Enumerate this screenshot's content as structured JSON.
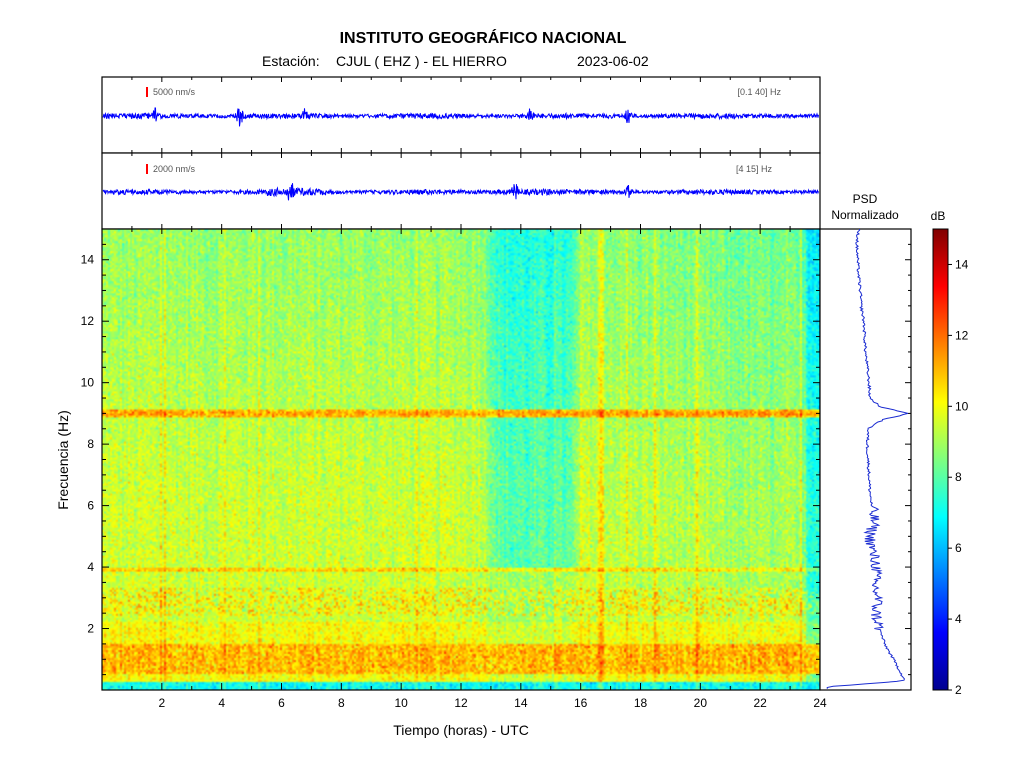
{
  "header": {
    "title": "INSTITUTO GEOGRÁFICO NACIONAL",
    "station_label": "Estación:",
    "station_value": "CJUL ( EHZ ) - EL HIERRO",
    "date": "2023-06-02"
  },
  "traces": [
    {
      "scale_label": "5000 nm/s",
      "band_label": "[0.1 40] Hz",
      "color": "#0000ff",
      "marker_color": "#ff0000",
      "events_hours": [
        1.8,
        4.6,
        6.8,
        14.3,
        17.6
      ]
    },
    {
      "scale_label": "2000 nm/s",
      "band_label": "[4 15] Hz",
      "color": "#0000ff",
      "marker_color": "#ff0000",
      "events_hours": [
        6.3,
        13.8,
        17.6
      ]
    }
  ],
  "psd": {
    "title_line1": "PSD",
    "title_line2": "Normalizado",
    "line_color": "#1a2bd1"
  },
  "colorbar": {
    "unit": "dB",
    "min": 2,
    "max": 15,
    "ticks": [
      2,
      4,
      6,
      8,
      10,
      12,
      14
    ]
  },
  "chart_data": {
    "type": "heatmap",
    "title": "INSTITUTO GEOGRÁFICO NACIONAL",
    "xlabel": "Tiempo (horas) - UTC",
    "ylabel": "Frecuencia  (Hz)",
    "xlim": [
      0,
      24
    ],
    "ylim": [
      0,
      15
    ],
    "xticks": [
      2,
      4,
      6,
      8,
      10,
      12,
      14,
      16,
      18,
      20,
      22,
      24
    ],
    "yticks": [
      2,
      4,
      6,
      8,
      10,
      12,
      14
    ],
    "colorscale": "jet",
    "zlim": [
      2,
      15
    ],
    "features": {
      "background_level_db": 9.5,
      "quiet_window_hours": [
        13,
        16
      ],
      "quiet_level_db": 8.0,
      "tonal_line_hz": 9.0,
      "tonal_line_db": 11.5,
      "secondary_line_hz": 3.9,
      "low_freq_band_hz": [
        0.5,
        1.5
      ],
      "low_freq_band_db": 11.0,
      "bottom_band_hz": [
        0,
        0.25
      ],
      "bottom_band_db": 7.0
    },
    "psd_normalized": {
      "freq_hz": [
        0.1,
        0.3,
        0.6,
        1.0,
        1.5,
        2.0,
        2.5,
        3.0,
        3.5,
        4.0,
        4.5,
        5.0,
        5.5,
        6.0,
        6.5,
        7.0,
        7.5,
        8.0,
        8.5,
        8.8,
        9.0,
        9.2,
        9.5,
        10.0,
        10.5,
        11.0,
        11.5,
        12.0,
        12.5,
        13.0,
        13.5,
        14.0,
        14.5,
        15.0
      ],
      "value": [
        0.05,
        0.95,
        0.9,
        0.82,
        0.72,
        0.66,
        0.62,
        0.64,
        0.6,
        0.63,
        0.58,
        0.55,
        0.6,
        0.57,
        0.55,
        0.54,
        0.53,
        0.52,
        0.53,
        0.7,
        1.0,
        0.68,
        0.55,
        0.54,
        0.52,
        0.5,
        0.49,
        0.48,
        0.45,
        0.44,
        0.42,
        0.41,
        0.4,
        0.42
      ]
    }
  }
}
